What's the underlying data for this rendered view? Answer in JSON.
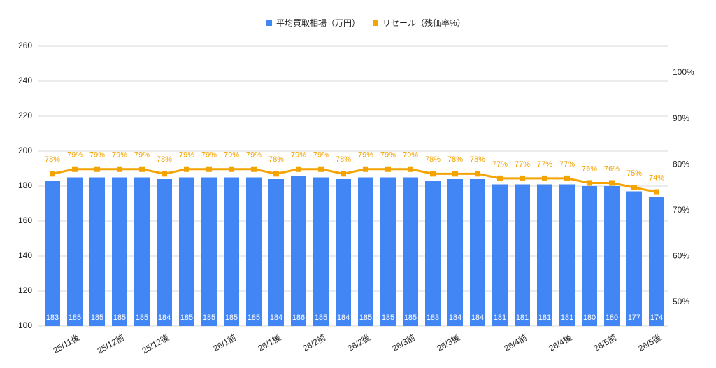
{
  "chart_data": {
    "type": "bar-line",
    "categories": [
      null,
      "25/11後",
      null,
      "25/12前",
      null,
      "25/12後",
      null,
      null,
      "26/1前",
      null,
      "26/1後",
      null,
      "26/2前",
      null,
      "26/2後",
      null,
      "26/3前",
      null,
      "26/3後",
      null,
      null,
      "26/4前",
      null,
      "26/4後",
      null,
      "26/5前",
      null,
      "26/5後"
    ],
    "series": [
      {
        "name": "平均買取相場（万円）",
        "color": "#4285f4",
        "type": "bar",
        "values": [
          183,
          185,
          185,
          185,
          185,
          184,
          185,
          185,
          185,
          185,
          184,
          186,
          185,
          184,
          185,
          185,
          185,
          183,
          184,
          184,
          181,
          181,
          181,
          181,
          180,
          180,
          177,
          174
        ]
      },
      {
        "name": "リセール（残価率%）",
        "color": "#f4a300",
        "type": "line",
        "axis": "y2",
        "values": [
          78,
          79,
          79,
          79,
          79,
          78,
          79,
          79,
          79,
          79,
          78,
          79,
          79,
          78,
          79,
          79,
          79,
          78,
          78,
          78,
          77,
          77,
          77,
          77,
          76,
          76,
          75,
          74
        ],
        "value_labels": [
          "78%",
          "79%",
          "79%",
          "79%",
          "79%",
          "78%",
          "79%",
          "79%",
          "79%",
          "79%",
          "78%",
          "79%",
          "79%",
          "78%",
          "79%",
          "79%",
          "79%",
          "78%",
          "78%",
          "78%",
          "77%",
          "77%",
          "77%",
          "77%",
          "76%",
          "76%",
          "75%",
          "74%"
        ]
      }
    ],
    "ylim": [
      100,
      260
    ],
    "yticks": [
      100,
      120,
      140,
      160,
      180,
      200,
      220,
      240,
      260
    ],
    "y2lim": [
      44.82,
      105.79
    ],
    "y2ticks": [
      {
        "value": 50,
        "label": "50%"
      },
      {
        "value": 60,
        "label": "60%"
      },
      {
        "value": 70,
        "label": "70%"
      },
      {
        "value": 80,
        "label": "80%"
      },
      {
        "value": 90,
        "label": "90%"
      },
      {
        "value": 100,
        "label": "100%"
      }
    ],
    "grid": true,
    "legend": "top"
  }
}
